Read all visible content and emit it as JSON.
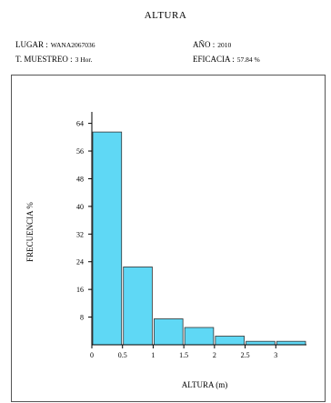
{
  "header": {
    "title": "ALTURA",
    "lugar_label": "LUGAR :",
    "lugar_value": "WANA2067036",
    "muestreo_label": "T. MUESTREO :",
    "muestreo_value": "3 Hor.",
    "anio_label": "AÑO :",
    "anio_value": "2010",
    "eficacia_label": "EFICACIA :",
    "eficacia_value": "57.84 %"
  },
  "chart_data": {
    "type": "bar",
    "xlabel": "ALTURA (m)",
    "ylabel": "FRECUENCIA %",
    "bin_edges": [
      0,
      0.5,
      1,
      1.5,
      2,
      2.5,
      3,
      3.5
    ],
    "values": [
      61.5,
      22.5,
      7.5,
      5.0,
      2.5,
      1.0,
      1.0
    ],
    "x_ticks": [
      "0",
      "0.5",
      "1",
      "1.5",
      "2",
      "2.5",
      "3"
    ],
    "y_ticks": [
      8,
      16,
      24,
      32,
      40,
      48,
      56,
      64
    ],
    "ylim": [
      0,
      66
    ],
    "xlim": [
      0,
      3.5
    ],
    "bar_color": "#5fd8f5",
    "grid": false
  }
}
